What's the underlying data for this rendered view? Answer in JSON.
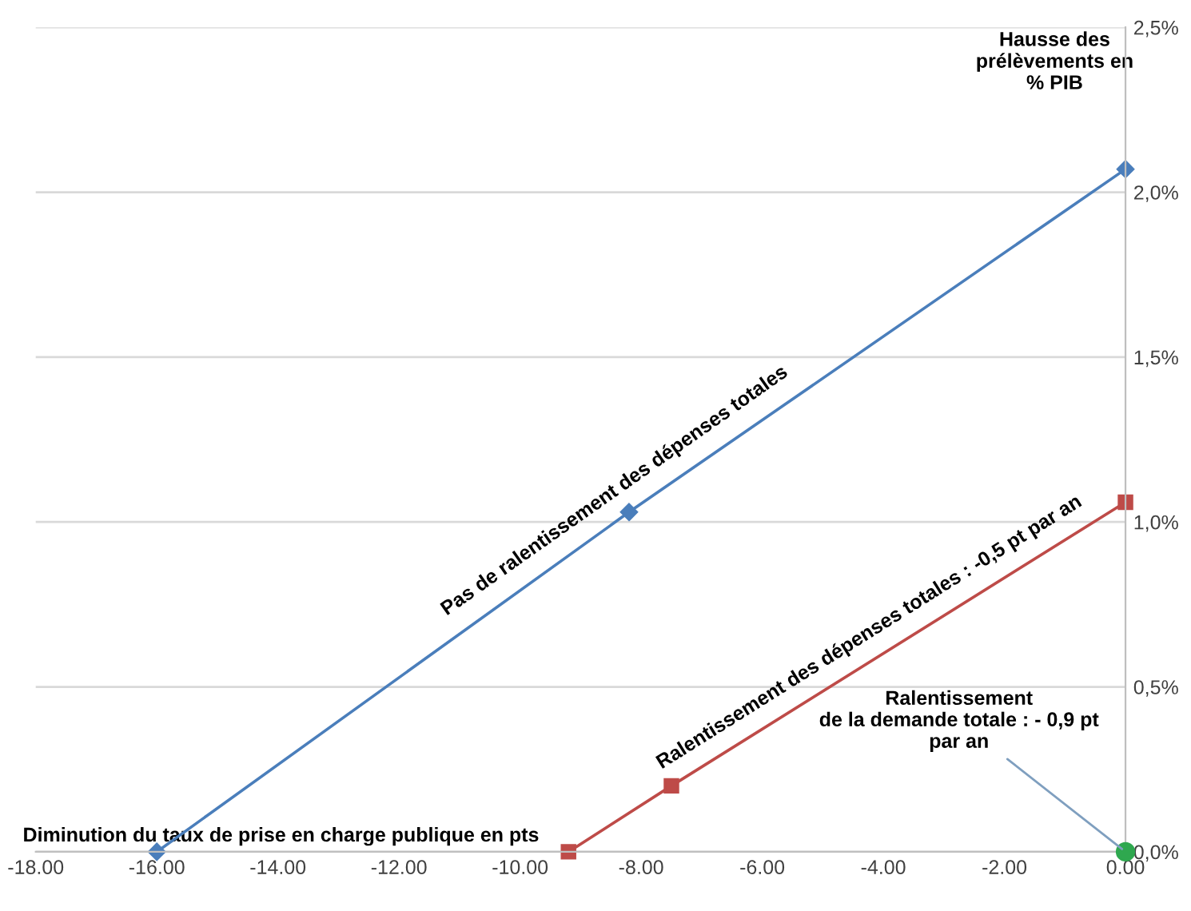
{
  "chart_data": {
    "type": "line",
    "xlabel": "Diminution du taux de prise en charge publique en pts",
    "ylabel": "Hausse des prélèvements en % PIB",
    "series": [
      {
        "color": "#4a7ebb",
        "x": [
          -16.0,
          -8.2,
          0.0
        ],
        "values": [
          0.0,
          1.03,
          2.07
        ],
        "marker": "diamond"
      },
      {
        "color": "#be4b48",
        "x": [
          -9.2,
          -7.5,
          0.0
        ],
        "values": [
          0.0,
          0.2,
          1.06
        ],
        "marker": "square"
      },
      {
        "type": "scatter",
        "color": "#2fa84f",
        "x": [
          0.0
        ],
        "values": [
          0.0
        ],
        "marker": "circle"
      }
    ],
    "xlim": [
      -18,
      0
    ],
    "ylim": [
      0,
      2.5
    ],
    "xticks": [
      {
        "value": -18,
        "label": "-18.00"
      },
      {
        "value": -16,
        "label": "-16.00"
      },
      {
        "value": -14,
        "label": "-14.00"
      },
      {
        "value": -12,
        "label": "-12.00"
      },
      {
        "value": -10,
        "label": "-10.00"
      },
      {
        "value": -8,
        "label": "-8.00"
      },
      {
        "value": -6,
        "label": "-6.00"
      },
      {
        "value": -4,
        "label": "-4.00"
      },
      {
        "value": -2,
        "label": "-2.00"
      },
      {
        "value": 0,
        "label": "0.00"
      }
    ],
    "yticks": [
      {
        "value": 0,
        "label": "0,0%"
      },
      {
        "value": 0.5,
        "label": "0,5%"
      },
      {
        "value": 1.0,
        "label": "1,0%"
      },
      {
        "value": 1.5,
        "label": "1,5%"
      },
      {
        "value": 2.0,
        "label": "2,0%"
      },
      {
        "value": 2.5,
        "label": "2,5%"
      }
    ],
    "grid": "y",
    "legend": false,
    "annotations": [
      {
        "text": "Pas de ralentissement des dépenses totales",
        "x": -8.2,
        "y": 1.03
      },
      {
        "text": "Ralentissement des dépenses totales : -0,5 pt par an",
        "x": -4.0,
        "y": 0.6
      },
      {
        "text": "Ralentissement de la demande totale : - 0,9 pt par an",
        "x": 0.0,
        "y": 0.0
      }
    ]
  }
}
